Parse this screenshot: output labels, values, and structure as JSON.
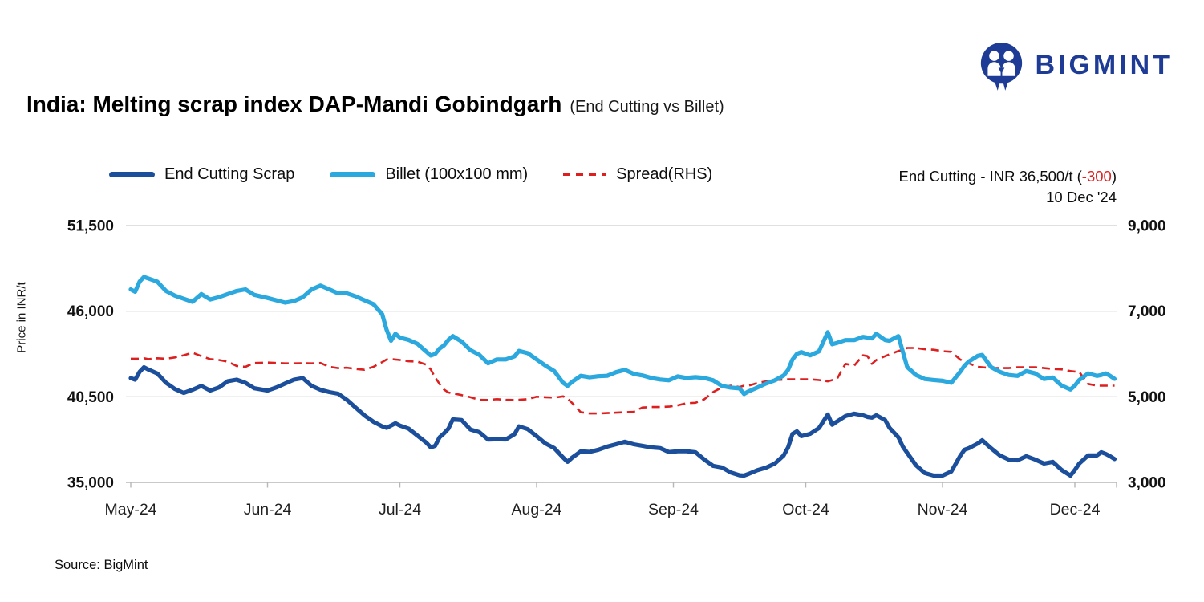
{
  "logo": {
    "brand": "BIGMINT",
    "color": "#1e3c96",
    "icon": "bigmint-people-icon"
  },
  "title": {
    "main": "India: Melting scrap index DAP-Mandi Gobindgarh",
    "subtitle": "(End Cutting vs Billet)"
  },
  "legend": [
    {
      "label": "End Cutting Scrap",
      "color": "#1b4e9b",
      "style": "solid"
    },
    {
      "label": "Billet (100x100 mm)",
      "color": "#2ba8dd",
      "style": "solid"
    },
    {
      "label": "Spread(RHS)",
      "color": "#dd1f1f",
      "style": "dashed"
    }
  ],
  "annotation": {
    "prefix": "End Cutting - INR 36,500/t (",
    "delta": "-300",
    "suffix": ")",
    "delta_color": "#e02020",
    "date": "10 Dec '24"
  },
  "source": "Source: BigMint",
  "chart_data": {
    "type": "line",
    "title": "India: Melting scrap index DAP-Mandi Gobindgarh (End Cutting vs Billet)",
    "grid": "horizontal",
    "legend_position": "top",
    "x_axis": {
      "unit": "days since 1 May 2024",
      "max_day": 223,
      "tick_days": [
        0,
        31,
        61,
        92,
        123,
        153,
        184,
        214
      ],
      "tick_labels": [
        "May-24",
        "Jun-24",
        "Jul-24",
        "Aug-24",
        "Sep-24",
        "Oct-24",
        "Nov-24",
        "Dec-24"
      ]
    },
    "y_left": {
      "label": "Price in INR/t",
      "min": 35000,
      "max": 51500,
      "ticks": [
        51500,
        46000,
        40500,
        35000
      ],
      "tick_labels": [
        "51,500",
        "46,000",
        "40,500",
        "35,000"
      ]
    },
    "y_right": {
      "min": 3000,
      "max": 9000,
      "ticks": [
        9000,
        7000,
        5000,
        3000
      ],
      "tick_labels": [
        "9,000",
        "7,000",
        "5,000",
        "3,000"
      ]
    },
    "days": [
      0,
      1,
      2,
      3,
      4,
      6,
      8,
      10,
      12,
      14,
      16,
      18,
      20,
      22,
      24,
      26,
      28,
      31,
      33,
      35,
      37,
      39,
      41,
      43,
      45,
      47,
      49,
      51,
      53,
      55,
      57,
      58,
      59,
      60,
      61,
      63,
      65,
      67,
      68,
      69,
      70,
      71,
      72,
      73,
      75,
      77,
      79,
      81,
      83,
      85,
      87,
      88,
      90,
      92,
      94,
      96,
      98,
      99,
      100,
      102,
      104,
      106,
      108,
      110,
      112,
      114,
      116,
      118,
      120,
      122,
      124,
      126,
      128,
      130,
      132,
      134,
      136,
      138,
      139,
      140,
      142,
      144,
      146,
      148,
      149,
      150,
      151,
      152,
      154,
      156,
      158,
      159,
      160,
      162,
      164,
      166,
      167,
      168,
      169,
      171,
      172,
      174,
      175,
      176,
      178,
      180,
      182,
      184,
      186,
      188,
      189,
      190,
      192,
      193,
      195,
      197,
      199,
      201,
      203,
      205,
      207,
      209,
      211,
      213,
      214,
      215,
      217,
      219,
      220,
      221,
      222,
      223
    ],
    "series": [
      {
        "name": "End Cutting Scrap",
        "axis": "left",
        "color": "#1b4e9b",
        "dash": false,
        "last_value": 36500,
        "last_change": -300,
        "last_date": "10 Dec '24",
        "values": [
          41700,
          41600,
          42100,
          42400,
          42250,
          42000,
          41400,
          41000,
          40750,
          40950,
          41200,
          40900,
          41100,
          41500,
          41600,
          41400,
          41050,
          40900,
          41100,
          41350,
          41600,
          41700,
          41200,
          40950,
          40800,
          40700,
          40300,
          39800,
          39300,
          38900,
          38600,
          38500,
          38650,
          38800,
          38650,
          38450,
          38000,
          37550,
          37250,
          37350,
          37900,
          38150,
          38450,
          39050,
          39000,
          38400,
          38230,
          37750,
          37770,
          37760,
          38100,
          38600,
          38420,
          37970,
          37500,
          37200,
          36600,
          36320,
          36580,
          36990,
          36960,
          37100,
          37300,
          37450,
          37610,
          37450,
          37350,
          37250,
          37200,
          36950,
          37000,
          37000,
          36940,
          36470,
          36060,
          35960,
          35640,
          35460,
          35440,
          35540,
          35780,
          35950,
          36210,
          36730,
          37250,
          38120,
          38280,
          37970,
          38120,
          38490,
          39360,
          38700,
          38900,
          39260,
          39415,
          39310,
          39200,
          39160,
          39310,
          39000,
          38500,
          37900,
          37300,
          36900,
          36100,
          35600,
          35440,
          35440,
          35700,
          36700,
          37100,
          37200,
          37500,
          37710,
          37195,
          36730,
          36470,
          36420,
          36680,
          36470,
          36210,
          36320,
          35800,
          35440,
          35800,
          36210,
          36730,
          36730,
          36940,
          36830,
          36680,
          36500
        ]
      },
      {
        "name": "Billet (100x100 mm)",
        "axis": "left",
        "color": "#2ba8dd",
        "dash": false,
        "values": [
          47400,
          47250,
          47900,
          48200,
          48100,
          47900,
          47300,
          47000,
          46800,
          46600,
          47100,
          46750,
          46900,
          47100,
          47300,
          47400,
          47050,
          46850,
          46700,
          46550,
          46650,
          46900,
          47400,
          47650,
          47400,
          47150,
          47150,
          46950,
          46700,
          46450,
          45800,
          44800,
          44100,
          44550,
          44300,
          44150,
          43900,
          43400,
          43150,
          43250,
          43600,
          43800,
          44150,
          44400,
          44050,
          43500,
          43200,
          42650,
          42900,
          42900,
          43100,
          43450,
          43300,
          42900,
          42500,
          42150,
          41400,
          41200,
          41450,
          41850,
          41750,
          41820,
          41850,
          42080,
          42230,
          41970,
          41870,
          41710,
          41610,
          41560,
          41810,
          41710,
          41760,
          41710,
          41560,
          41200,
          41090,
          41040,
          40680,
          40840,
          41090,
          41350,
          41560,
          41870,
          42230,
          42900,
          43260,
          43370,
          43160,
          43420,
          44650,
          43880,
          43950,
          44140,
          44140,
          44350,
          44300,
          44250,
          44550,
          44140,
          44100,
          44400,
          43400,
          42410,
          41900,
          41640,
          41580,
          41530,
          41400,
          42100,
          42500,
          42770,
          43130,
          43190,
          42410,
          42100,
          41900,
          41840,
          42150,
          42000,
          41640,
          41740,
          41220,
          40965,
          41220,
          41580,
          42000,
          41840,
          41900,
          42000,
          41840,
          41650
        ]
      },
      {
        "name": "Spread(RHS)",
        "axis": "right",
        "color": "#dd1f1f",
        "dash": true,
        "values": [
          5890,
          5890,
          5890,
          5900,
          5880,
          5900,
          5890,
          5920,
          5970,
          6030,
          5950,
          5880,
          5860,
          5820,
          5720,
          5700,
          5790,
          5800,
          5790,
          5780,
          5780,
          5785,
          5780,
          5790,
          5700,
          5670,
          5680,
          5650,
          5630,
          5700,
          5810,
          5870,
          5880,
          5870,
          5860,
          5830,
          5820,
          5750,
          5640,
          5450,
          5300,
          5170,
          5100,
          5080,
          5040,
          4990,
          4930,
          4925,
          4945,
          4930,
          4925,
          4930,
          4945,
          5000,
          4990,
          4980,
          5010,
          4960,
          4860,
          4640,
          4610,
          4610,
          4620,
          4630,
          4640,
          4650,
          4750,
          4760,
          4760,
          4770,
          4800,
          4850,
          4860,
          4940,
          5110,
          5220,
          5260,
          5230,
          5260,
          5260,
          5320,
          5360,
          5390,
          5400,
          5410,
          5410,
          5410,
          5410,
          5410,
          5390,
          5360,
          5390,
          5400,
          5770,
          5730,
          5970,
          5950,
          5770,
          5860,
          5950,
          5990,
          6070,
          6100,
          6140,
          6140,
          6110,
          6100,
          6065,
          6050,
          5870,
          5820,
          5780,
          5700,
          5690,
          5670,
          5670,
          5670,
          5690,
          5690,
          5690,
          5670,
          5650,
          5640,
          5600,
          5590,
          5580,
          5300,
          5260,
          5260,
          5260,
          5260,
          5260
        ]
      }
    ]
  }
}
